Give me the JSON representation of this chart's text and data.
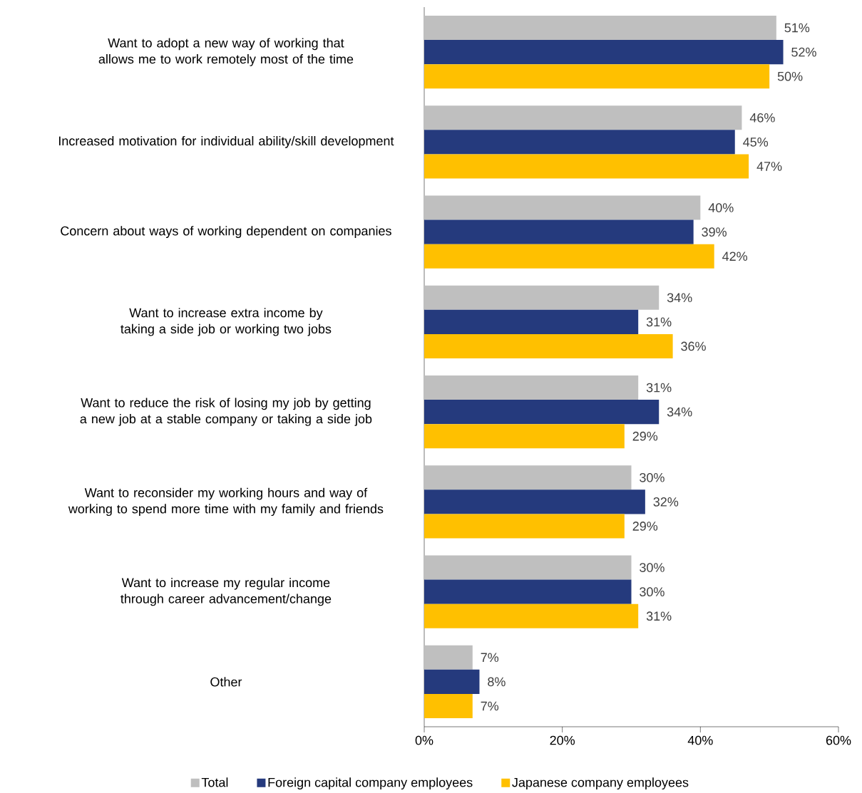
{
  "chart_data": {
    "type": "bar",
    "orientation": "horizontal",
    "categories": [
      "Want to adopt a new way of working that allows me to work remotely most of the time",
      "Increased motivation for individual ability/skill development",
      "Concern about  ways of working dependent on companies",
      "Want to increase extra income by taking a side job or working two jobs",
      "Want to reduce the risk of losing my job by getting a new job at a stable company or taking a side job",
      "Want to reconsider my working hours and way of working to spend more time with my family and friends",
      "Want to increase my regular income through career advancement/change",
      "Other"
    ],
    "series": [
      {
        "name": "Total",
        "color": "#bfbfbf",
        "values": [
          51,
          46,
          40,
          34,
          31,
          30,
          30,
          7
        ],
        "value_labels": [
          "51%",
          "46%",
          "40%",
          "34%",
          "31%",
          "30%",
          "30%",
          "7%"
        ]
      },
      {
        "name": "Foreign capital company employees",
        "color": "#253a7d",
        "values": [
          52,
          45,
          39,
          31,
          34,
          32,
          30,
          8
        ],
        "value_labels": [
          "52%",
          "45%",
          "39%",
          "31%",
          "34%",
          "32%",
          "30%",
          "8%"
        ]
      },
      {
        "name": "Japanese company employees",
        "color": "#ffc000",
        "values": [
          50,
          47,
          42,
          36,
          29,
          29,
          31,
          7
        ],
        "value_labels": [
          "50%",
          "47%",
          "42%",
          "36%",
          "29%",
          "29%",
          "31%",
          "7%"
        ]
      }
    ],
    "xlim": [
      0,
      60
    ],
    "xticks": [
      {
        "value": 0,
        "label": "0%"
      },
      {
        "value": 20,
        "label": "20%"
      },
      {
        "value": 40,
        "label": "40%"
      },
      {
        "value": 60,
        "label": "60%"
      }
    ],
    "legend": "bottom"
  }
}
